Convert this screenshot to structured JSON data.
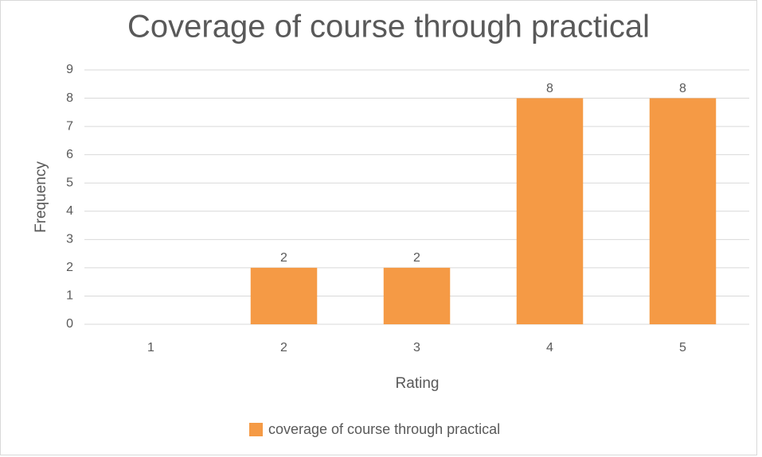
{
  "chart_data": {
    "type": "bar",
    "title": "Coverage of course through practical",
    "x_label": "Rating",
    "y_label": "Frequency",
    "categories": [
      "1",
      "2",
      "3",
      "4",
      "5"
    ],
    "series": [
      {
        "name": "coverage of course through practical",
        "color": "#f59a45",
        "values": [
          0,
          2,
          2,
          8,
          8
        ]
      }
    ],
    "ylim": [
      0,
      9
    ],
    "yticks": [
      0,
      1,
      2,
      3,
      4,
      5,
      6,
      7,
      8,
      9
    ],
    "grid": true,
    "legend": "bottom"
  }
}
